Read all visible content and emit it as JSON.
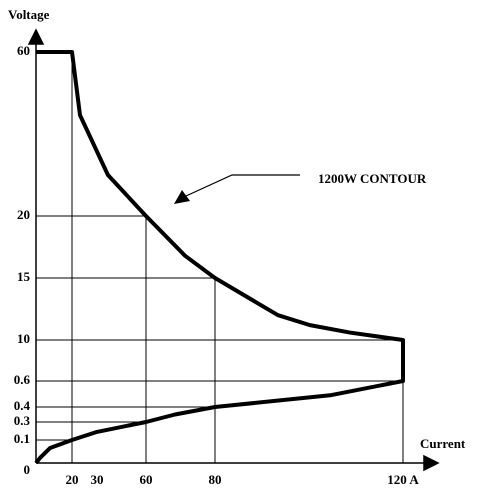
{
  "chart_data": {
    "type": "line",
    "y_label": "Voltage",
    "x_label": "Current",
    "annotation": "1200W CONTOUR",
    "xlim": [
      0,
      120
    ],
    "xticks": [
      20,
      30,
      60,
      80,
      {
        "value": 120,
        "label": "120 A"
      }
    ],
    "ylim": [
      0,
      60
    ],
    "yticks": [
      60,
      20,
      15,
      10,
      0.6,
      0.4,
      0.3,
      0.1,
      0
    ],
    "series": [
      {
        "color": "#000000",
        "x": [
          0,
          20,
          23.2,
          36.7,
          60,
          71.3,
          80,
          93.4,
          100.2,
          108.7,
          120,
          120,
          104.5,
          80,
          68.4,
          60,
          30,
          20,
          7.8,
          2.2,
          0
        ],
        "values": [
          60,
          60,
          44.6,
          30,
          20,
          16.8,
          15,
          12,
          11.2,
          10.6,
          10,
          0.6,
          0.49,
          0.4,
          0.35,
          0.3,
          0.19,
          0.1,
          0.065,
          0.022,
          0
        ]
      }
    ]
  }
}
